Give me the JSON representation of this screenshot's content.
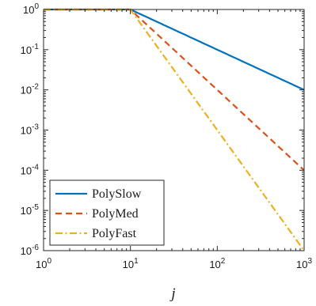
{
  "chart_data": {
    "type": "line",
    "title": "",
    "xlabel": "j",
    "ylabel": "",
    "xscale": "log",
    "yscale": "log",
    "xlim": [
      1,
      1000
    ],
    "ylim": [
      1e-06,
      1
    ],
    "x_ticks": [
      {
        "value": 1,
        "base": "10",
        "exp": "0"
      },
      {
        "value": 10,
        "base": "10",
        "exp": "1"
      },
      {
        "value": 100,
        "base": "10",
        "exp": "2"
      },
      {
        "value": 1000,
        "base": "10",
        "exp": "3"
      }
    ],
    "y_ticks": [
      {
        "value": 1,
        "base": "10",
        "exp": "0"
      },
      {
        "value": 0.1,
        "base": "10",
        "exp": "-1"
      },
      {
        "value": 0.01,
        "base": "10",
        "exp": "-2"
      },
      {
        "value": 0.001,
        "base": "10",
        "exp": "-3"
      },
      {
        "value": 0.0001,
        "base": "10",
        "exp": "-4"
      },
      {
        "value": 1e-05,
        "base": "10",
        "exp": "-5"
      },
      {
        "value": 1e-06,
        "base": "10",
        "exp": "-6"
      }
    ],
    "grid": false,
    "legend_position": "bottom-left",
    "series": [
      {
        "name": "PolySlow",
        "color": "#0072BD",
        "dash": "solid",
        "x": [
          1,
          2,
          5,
          10,
          11,
          12,
          15,
          20,
          30,
          50,
          100,
          200,
          500,
          1000
        ],
        "y": [
          1,
          1,
          1,
          1,
          0.909,
          0.833,
          0.667,
          0.5,
          0.333,
          0.2,
          0.1,
          0.05,
          0.02,
          0.01
        ]
      },
      {
        "name": "PolyMed",
        "color": "#D95319",
        "dash": "dashed",
        "x": [
          1,
          2,
          5,
          10,
          11,
          12,
          15,
          20,
          30,
          50,
          100,
          200,
          500,
          1000
        ],
        "y": [
          1,
          1,
          1,
          1,
          0.826,
          0.694,
          0.444,
          0.25,
          0.111,
          0.04,
          0.01,
          0.0025,
          0.0004,
          0.0001
        ]
      },
      {
        "name": "PolyFast",
        "color": "#EDB120",
        "dash": "dashdot",
        "x": [
          1,
          2,
          5,
          10,
          11,
          12,
          15,
          20,
          30,
          50,
          100,
          200,
          500,
          1000
        ],
        "y": [
          1,
          1,
          1,
          1,
          0.751,
          0.579,
          0.296,
          0.125,
          0.037,
          0.008,
          0.001,
          0.000125,
          8e-06,
          1e-06
        ]
      }
    ]
  }
}
